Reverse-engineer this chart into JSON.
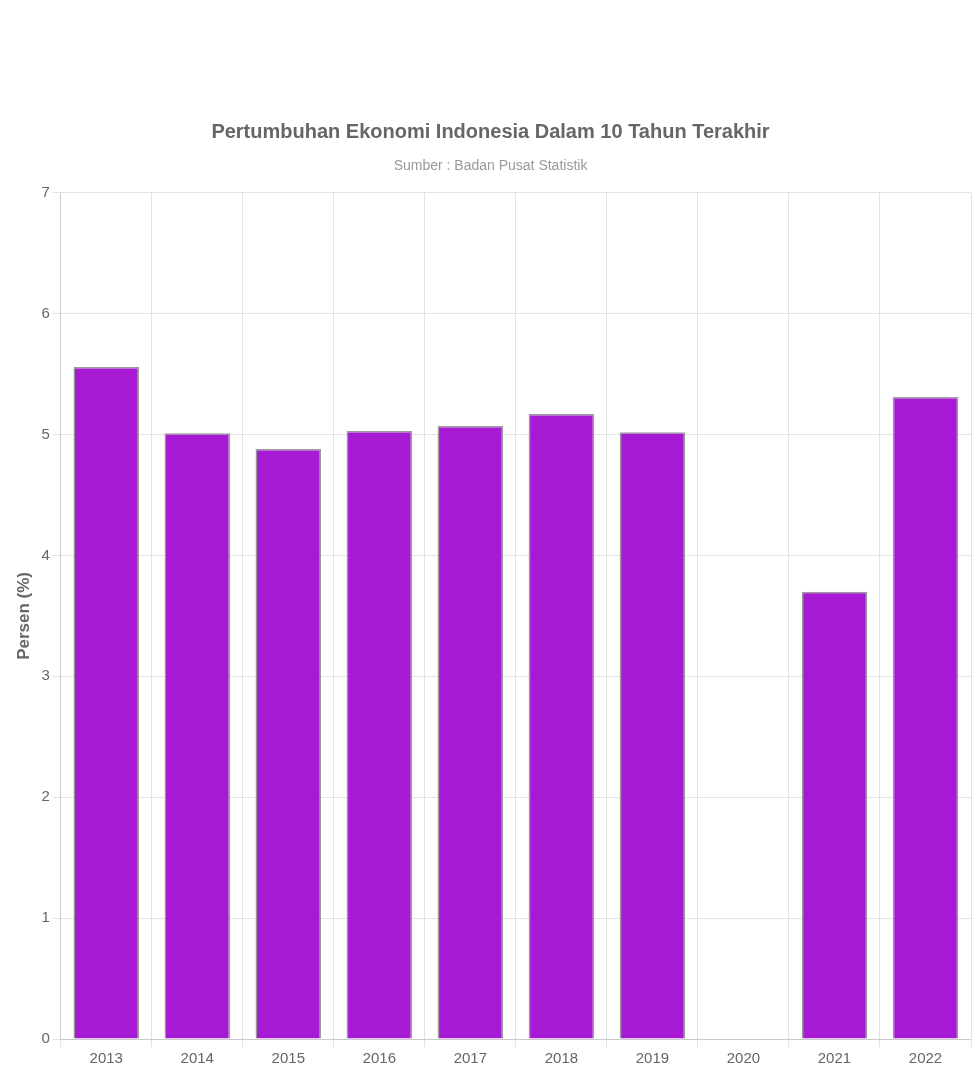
{
  "chart_data": {
    "type": "bar",
    "title": "Pertumbuhan Ekonomi Indonesia Dalam 10 Tahun Terakhir",
    "subtitle": "Sumber : Badan Pusat Statistik",
    "ylabel": "Persen (%)",
    "categories": [
      "2013",
      "2014",
      "2015",
      "2016",
      "2017",
      "2018",
      "2019",
      "2020",
      "2021",
      "2022"
    ],
    "values": [
      5.56,
      5.01,
      4.88,
      5.03,
      5.07,
      5.17,
      5.02,
      null,
      3.7,
      5.31
    ],
    "color": "#a61ad4",
    "ylim": [
      0,
      7
    ],
    "yticks": [
      0,
      1,
      2,
      3,
      4,
      5,
      6,
      7
    ],
    "grid": true,
    "legend": false
  }
}
